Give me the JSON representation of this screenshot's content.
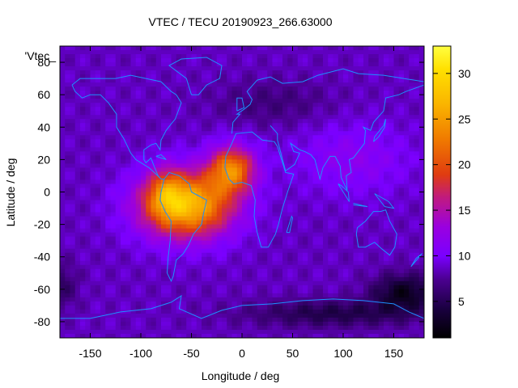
{
  "chart_data": {
    "type": "heatmap",
    "title": "VTEC / TECU 20190923_266.63000",
    "xlabel": "Longitude / deg",
    "ylabel": "Latitude / deg",
    "key_label": "'Vtec_",
    "xlim": [
      -180,
      180
    ],
    "ylim": [
      -90,
      90
    ],
    "xticks": [
      -150,
      -100,
      -50,
      0,
      50,
      100,
      150
    ],
    "yticks": [
      -80,
      -60,
      -40,
      -20,
      0,
      20,
      40,
      60,
      80
    ],
    "colorbar": {
      "range": [
        1,
        33
      ],
      "ticks": [
        5,
        10,
        15,
        20,
        25,
        30
      ],
      "palette": [
        "#000000",
        "#1a0040",
        "#4b0090",
        "#7a00ff",
        "#9a00e0",
        "#c01a80",
        "#e03c10",
        "#f07a00",
        "#fab400",
        "#ffe000",
        "#ffff40"
      ]
    },
    "features": [
      {
        "label": "VTEC maximum over South Atlantic / South America",
        "lon": -50,
        "lat": -10,
        "value": 28
      },
      {
        "label": "secondary maximum over West Africa",
        "lon": 0,
        "lat": 15,
        "value": 26
      },
      {
        "label": "background level",
        "value": 8
      },
      {
        "label": "minimum south of Australia",
        "lon": 160,
        "lat": -60,
        "value": 2
      }
    ],
    "grid": false,
    "overlay": "coastlines",
    "colors": {
      "coastline": "#1e90ff",
      "frame": "#000000"
    }
  }
}
